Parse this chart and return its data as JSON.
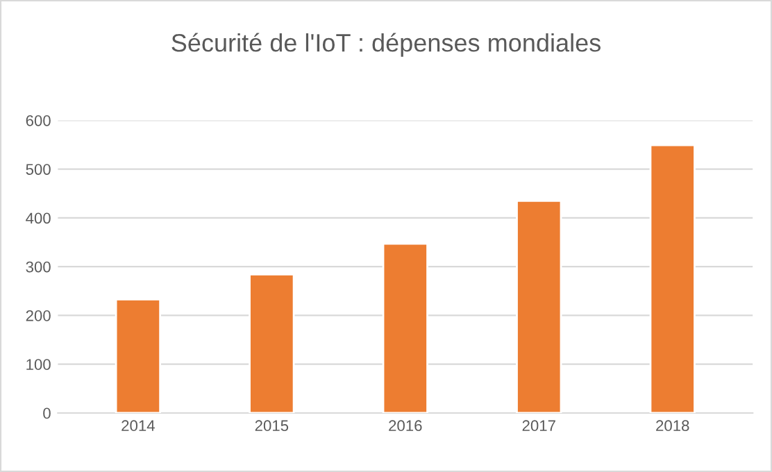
{
  "chart_data": {
    "type": "bar",
    "title": "Sécurité de l'IoT : dépenses mondiales",
    "categories": [
      "2014",
      "2015",
      "2016",
      "2017",
      "2018"
    ],
    "values": [
      233,
      284,
      347,
      435,
      549
    ],
    "color": "#ed7d31",
    "ylim": [
      0,
      600
    ],
    "yticks": [
      0,
      100,
      200,
      300,
      400,
      500,
      600
    ],
    "grid": "y",
    "legend": false
  }
}
